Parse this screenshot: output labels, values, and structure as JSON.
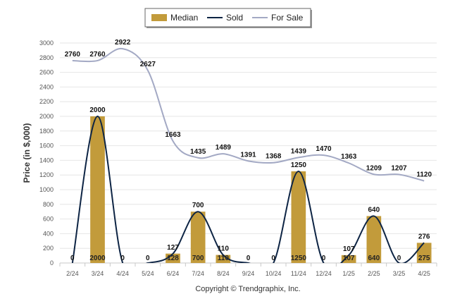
{
  "chart_data": {
    "type": "bar",
    "categories": [
      "2/24",
      "3/24",
      "4/24",
      "5/24",
      "6/24",
      "7/24",
      "8/24",
      "9/24",
      "10/24",
      "11/24",
      "12/24",
      "1/25",
      "2/25",
      "3/25",
      "4/25"
    ],
    "series": [
      {
        "name": "Median",
        "type": "bar",
        "color": "#C29B3B",
        "values": [
          0,
          2000,
          0,
          0,
          128,
          700,
          110,
          0,
          0,
          1250,
          0,
          107,
          640,
          0,
          275
        ],
        "labels": [
          "0",
          "2000",
          "0",
          "0",
          "128",
          "700",
          "110",
          "0",
          "0",
          "1250",
          "0",
          "107",
          "640",
          "0",
          "275"
        ]
      },
      {
        "name": "Sold",
        "type": "line",
        "color": "#0D2444",
        "values": [
          0,
          2000,
          0,
          0,
          127,
          700,
          110,
          0,
          0,
          1250,
          0,
          107,
          640,
          0,
          276
        ],
        "labels": [
          "0",
          "2000",
          "0",
          "0",
          "127",
          "700",
          "110",
          "0",
          "0",
          "1250",
          "0",
          "107",
          "640",
          "0",
          "276"
        ]
      },
      {
        "name": "For Sale",
        "type": "line",
        "color": "#A3A9C4",
        "values": [
          2760,
          2760,
          2922,
          2627,
          1663,
          1435,
          1489,
          1391,
          1368,
          1439,
          1470,
          1363,
          1209,
          1207,
          1120
        ],
        "labels": [
          "2760",
          "2760",
          "2922",
          "2627",
          "1663",
          "1435",
          "1489",
          "1391",
          "1368",
          "1439",
          "1470",
          "1363",
          "1209",
          "1207",
          "1120"
        ]
      }
    ],
    "ylabel": "Price (in $,000)",
    "ylim": [
      0,
      3000
    ],
    "yticks": [
      "0",
      "200",
      "400",
      "600",
      "800",
      "1000",
      "1200",
      "1400",
      "1600",
      "1800",
      "2000",
      "2200",
      "2400",
      "2600",
      "2800",
      "3000"
    ],
    "grid": true,
    "legend_position": "top-center"
  },
  "footer": {
    "copyright": "Copyright © Trendgraphix, Inc."
  }
}
